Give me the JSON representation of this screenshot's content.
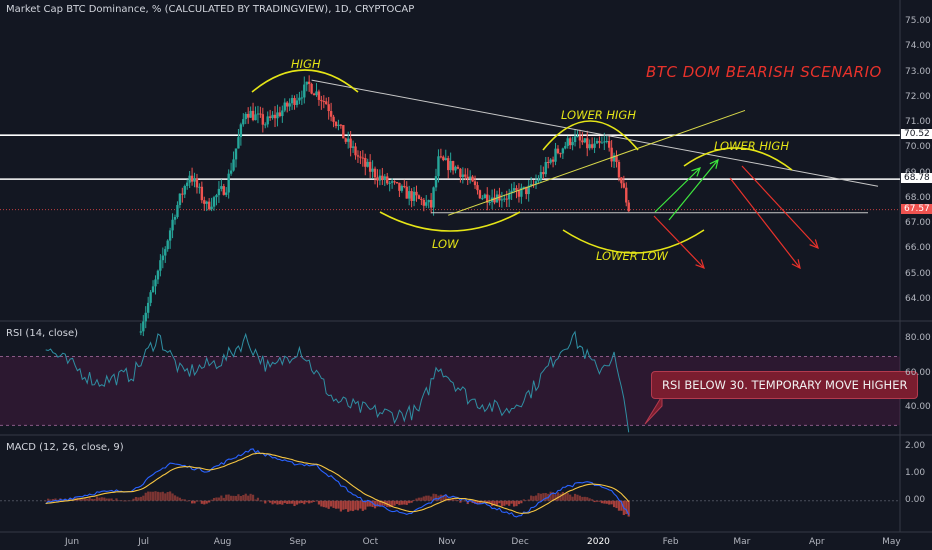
{
  "header": {
    "main_title": "Market Cap BTC Dominance, % (CALCULATED BY TRADINGVIEW), 1D, CRYPTOCAP",
    "rsi_title": "RSI (14, close)",
    "macd_title": "MACD (12, 26, close, 9)"
  },
  "annotations": {
    "scenario_title": "BTC DOM BEARISH SCENARIO",
    "high": "HIGH",
    "lower_high_1": "LOWER HIGH",
    "lower_high_2": "LOWER HIGH",
    "low": "LOW",
    "lower_low": "LOWER LOW",
    "rsi_note": "RSI BELOW 30. TEMPORARY MOVE HIGHER"
  },
  "colors": {
    "background": "#131722",
    "up_candle": "#26a69a",
    "down_candle": "#ef5350",
    "annotation_yellow": "#e5e517",
    "bearish_red": "#e8322b",
    "bullish_green": "#3ee83e",
    "rsi_line": "#2f8fa3",
    "macd_line": "#2962ff",
    "signal_line": "#f5c542"
  },
  "chart_data": [
    {
      "type": "candlestick",
      "title": "Market Cap BTC Dominance, % (CALCULATED BY TRADINGVIEW), 1D, CRYPTOCAP",
      "x_tick_labels": [
        "Jun",
        "Jul",
        "Aug",
        "Sep",
        "Oct",
        "Nov",
        "Dec",
        "2020",
        "Feb",
        "Mar",
        "Apr",
        "May"
      ],
      "y_tick_labels": [
        "64.00",
        "65.00",
        "66.00",
        "67.00",
        "68.00",
        "69.00",
        "70.00",
        "71.00",
        "72.00",
        "73.00",
        "74.00",
        "75.00"
      ],
      "ylim": [
        63.2,
        75.4
      ],
      "horizontal_levels": [
        {
          "value": 70.52,
          "label": "70.52"
        },
        {
          "value": 68.78,
          "label": "68.78"
        }
      ],
      "last_price": {
        "value": 67.57,
        "label": "67.57"
      },
      "close_series_anchors": [
        {
          "date": "2019-06-28",
          "value": 63.0
        },
        {
          "date": "2019-07-05",
          "value": 65.0
        },
        {
          "date": "2019-07-12",
          "value": 67.5
        },
        {
          "date": "2019-07-18",
          "value": 69.0
        },
        {
          "date": "2019-07-25",
          "value": 67.7
        },
        {
          "date": "2019-08-02",
          "value": 68.5
        },
        {
          "date": "2019-08-10",
          "value": 71.5
        },
        {
          "date": "2019-08-18",
          "value": 71.0
        },
        {
          "date": "2019-08-25",
          "value": 71.5
        },
        {
          "date": "2019-09-05",
          "value": 72.5
        },
        {
          "date": "2019-09-12",
          "value": 71.8
        },
        {
          "date": "2019-09-20",
          "value": 70.3
        },
        {
          "date": "2019-09-28",
          "value": 69.3
        },
        {
          "date": "2019-10-06",
          "value": 68.7
        },
        {
          "date": "2019-10-15",
          "value": 68.2
        },
        {
          "date": "2019-10-25",
          "value": 67.7
        },
        {
          "date": "2019-10-28",
          "value": 69.5
        },
        {
          "date": "2019-11-05",
          "value": 69.2
        },
        {
          "date": "2019-11-15",
          "value": 68.1
        },
        {
          "date": "2019-11-25",
          "value": 68.1
        },
        {
          "date": "2019-12-05",
          "value": 68.4
        },
        {
          "date": "2019-12-15",
          "value": 69.8
        },
        {
          "date": "2019-12-22",
          "value": 70.4
        },
        {
          "date": "2019-12-30",
          "value": 70.0
        },
        {
          "date": "2020-01-05",
          "value": 70.2
        },
        {
          "date": "2020-01-10",
          "value": 69.0
        },
        {
          "date": "2020-01-14",
          "value": 67.6
        }
      ]
    },
    {
      "type": "line",
      "title": "RSI (14, close)",
      "y_tick_labels": [
        "40.00",
        "60.00",
        "80.00"
      ],
      "ylim": [
        25,
        90
      ],
      "band": [
        30,
        70
      ],
      "series_anchors": [
        {
          "date": "2019-05-20",
          "value": 75
        },
        {
          "date": "2019-06-10",
          "value": 55
        },
        {
          "date": "2019-06-25",
          "value": 60
        },
        {
          "date": "2019-07-05",
          "value": 82
        },
        {
          "date": "2019-07-15",
          "value": 60
        },
        {
          "date": "2019-08-01",
          "value": 68
        },
        {
          "date": "2019-08-10",
          "value": 80
        },
        {
          "date": "2019-08-20",
          "value": 62
        },
        {
          "date": "2019-09-01",
          "value": 75
        },
        {
          "date": "2019-09-15",
          "value": 45
        },
        {
          "date": "2019-09-25",
          "value": 40
        },
        {
          "date": "2019-10-10",
          "value": 36
        },
        {
          "date": "2019-10-20",
          "value": 38
        },
        {
          "date": "2019-10-28",
          "value": 65
        },
        {
          "date": "2019-11-10",
          "value": 45
        },
        {
          "date": "2019-11-25",
          "value": 38
        },
        {
          "date": "2019-12-05",
          "value": 50
        },
        {
          "date": "2019-12-15",
          "value": 70
        },
        {
          "date": "2019-12-22",
          "value": 82
        },
        {
          "date": "2020-01-01",
          "value": 62
        },
        {
          "date": "2020-01-08",
          "value": 70
        },
        {
          "date": "2020-01-14",
          "value": 29
        }
      ]
    },
    {
      "type": "line",
      "title": "MACD (12, 26, close, 9)",
      "y_tick_labels": [
        "0.00",
        "1.00",
        "2.00"
      ],
      "ylim": [
        -0.9,
        2.4
      ],
      "series": [
        {
          "name": "MACD",
          "anchors_kind": "macd"
        },
        {
          "name": "Signal",
          "anchors_kind": "signal"
        },
        {
          "name": "Histogram",
          "anchors_kind": "histogram"
        }
      ]
    }
  ]
}
